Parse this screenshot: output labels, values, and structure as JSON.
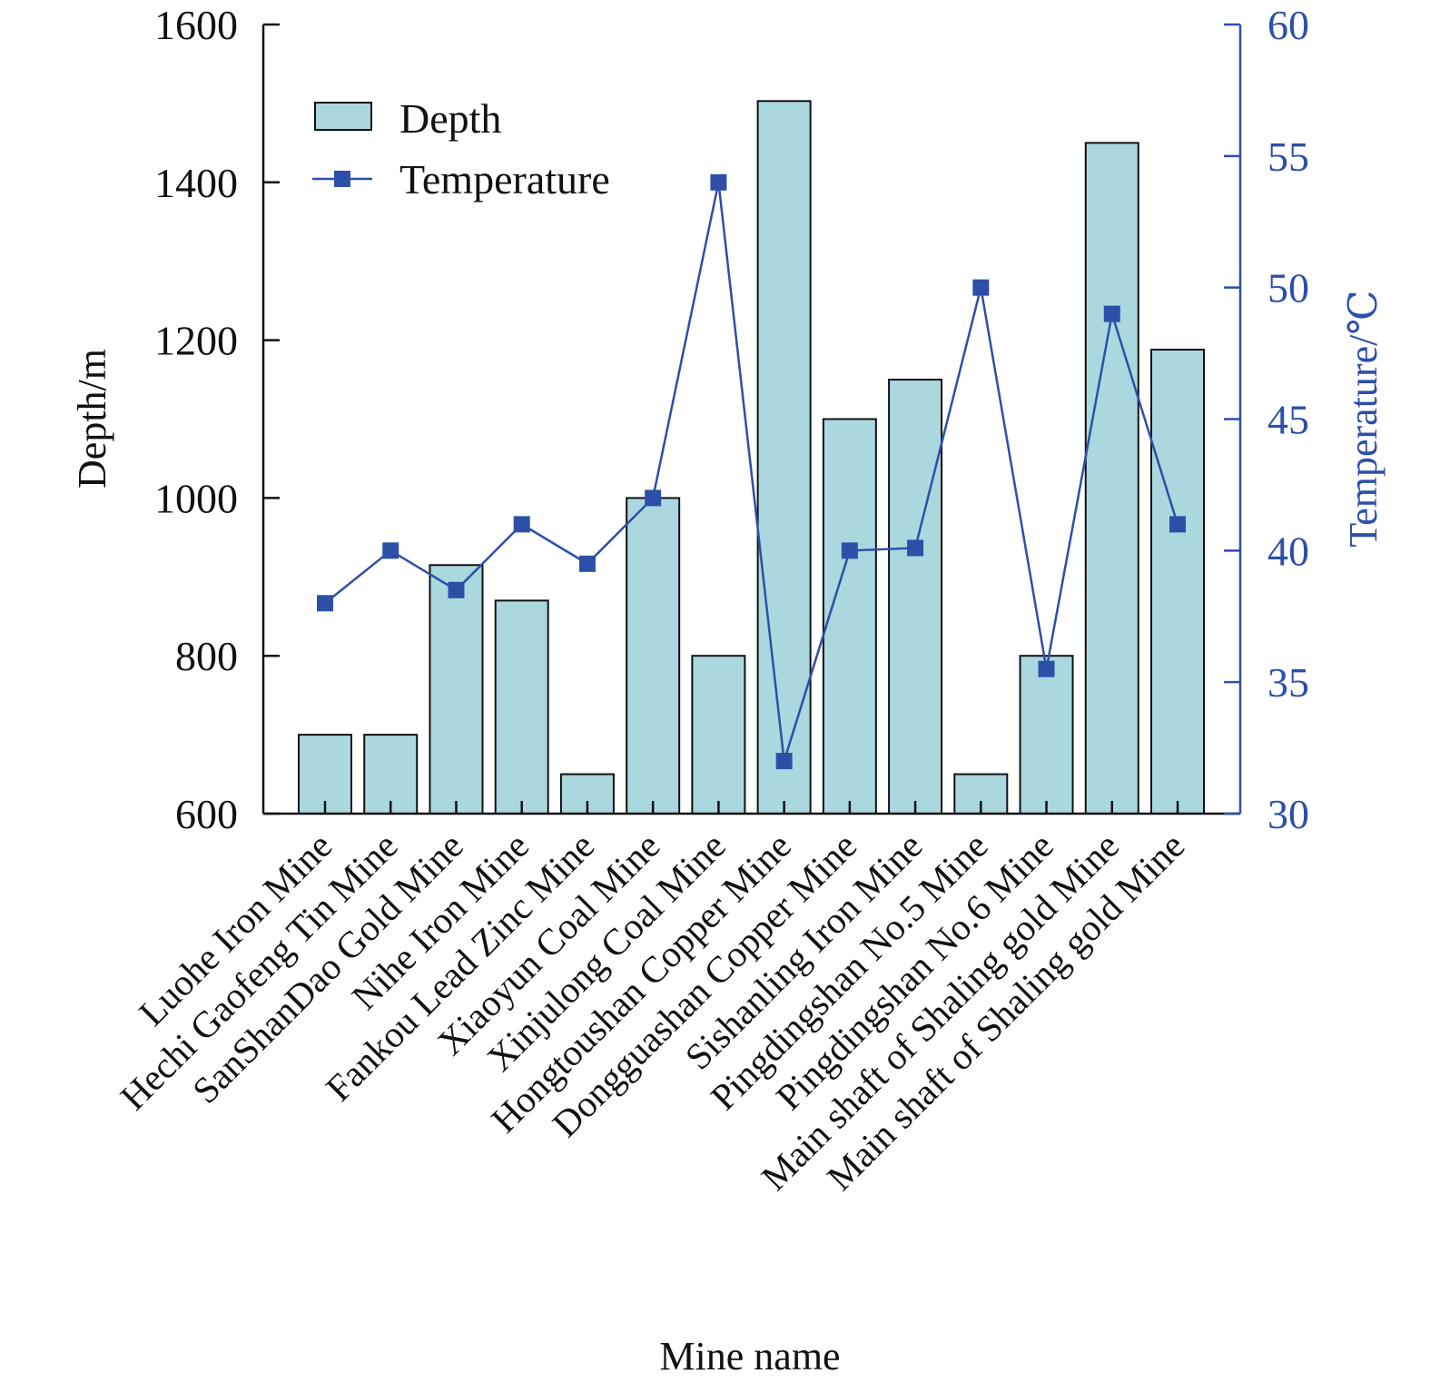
{
  "chart_data": {
    "type": "bar",
    "title": "",
    "xlabel": "Mine name",
    "ylabel_left": "Depth/m",
    "ylabel_right": "Temperature/℃",
    "ylim_left": [
      600,
      1600
    ],
    "ylim_right": [
      30,
      60
    ],
    "yticks_left": [
      "600",
      "800",
      "1000",
      "1200",
      "1400",
      "1600"
    ],
    "yticks_right": [
      "30",
      "35",
      "40",
      "45",
      "50",
      "55",
      "60"
    ],
    "grid": false,
    "legend_position": "top-left",
    "categories": [
      "Luohe Iron Mine",
      "Hechi Gaofeng Tin Mine",
      "SanShanDao Gold Mine",
      "Nihe Iron Mine",
      "Fankou Lead Zinc Mine",
      "Xiaoyun Coal Mine",
      "Xinjulong Coal Mine",
      "Hongtoushan Copper Mine",
      "Dongguashan Copper Mine",
      "Sishanling Iron Mine",
      "Pingdingshan No.5 Mine",
      "Pingdingshan No.6 Mine",
      "Main shaft of Shaling gold Mine",
      "Main shaft of Shaling gold Mine"
    ],
    "series": [
      {
        "name": "Depth",
        "type": "bar",
        "axis": "left",
        "color": "#aad8de",
        "values": [
          700,
          700,
          915,
          870,
          650,
          1000,
          800,
          1503,
          1100,
          1150,
          650,
          800,
          1450,
          1188
        ]
      },
      {
        "name": "Temperature",
        "type": "line",
        "axis": "right",
        "color": "#2e4fa8",
        "marker": "square",
        "values": [
          38,
          40,
          38.5,
          41,
          39.5,
          42,
          54,
          32,
          40,
          40.1,
          50,
          35.5,
          49,
          41
        ]
      }
    ],
    "colors": {
      "bar_fill": "#aad8de",
      "bar_stroke": "#111111",
      "line": "#2e4fa8",
      "right_axis": "#2e4fa8",
      "left_axis": "#111111"
    }
  }
}
